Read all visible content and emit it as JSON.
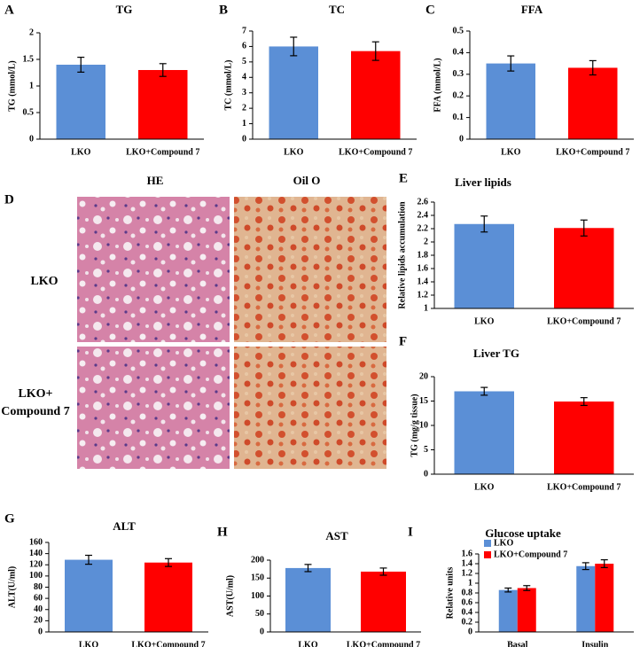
{
  "chart_data": [
    {
      "type": "bar",
      "panel": "A",
      "title": "TG",
      "ylabel": "TG (mmol/L)",
      "categories": [
        "LKO",
        "LKO+Compound 7"
      ],
      "values": [
        1.4,
        1.3
      ],
      "errors": [
        0.14,
        0.12
      ],
      "colors": [
        "#5b8fd6",
        "#ff0000"
      ],
      "ylim": [
        0,
        2
      ],
      "yticks": [
        0,
        0.5,
        1,
        1.5,
        2
      ]
    },
    {
      "type": "bar",
      "panel": "B",
      "title": "TC",
      "ylabel": "TC (mmol/L)",
      "categories": [
        "LKO",
        "LKO+Compound 7"
      ],
      "values": [
        6.0,
        5.7
      ],
      "errors": [
        0.6,
        0.6
      ],
      "colors": [
        "#5b8fd6",
        "#ff0000"
      ],
      "ylim": [
        0,
        7
      ],
      "yticks": [
        0,
        1,
        2,
        3,
        4,
        5,
        6,
        7
      ]
    },
    {
      "type": "bar",
      "panel": "C",
      "title": "FFA",
      "ylabel": "FFA (mmol/L)",
      "categories": [
        "LKO",
        "LKO+Compound 7"
      ],
      "values": [
        0.35,
        0.33
      ],
      "errors": [
        0.035,
        0.033
      ],
      "colors": [
        "#5b8fd6",
        "#ff0000"
      ],
      "ylim": [
        0,
        0.5
      ],
      "yticks": [
        0,
        0.1,
        0.2,
        0.3,
        0.4,
        0.5
      ]
    },
    {
      "type": "bar",
      "panel": "E",
      "title": "Liver lipids",
      "ylabel": "Relative lipids  accumulation",
      "categories": [
        "LKO",
        "LKO+Compound 7"
      ],
      "values": [
        2.27,
        2.21
      ],
      "errors": [
        0.12,
        0.12
      ],
      "colors": [
        "#5b8fd6",
        "#ff0000"
      ],
      "ylim": [
        1,
        2.6
      ],
      "yticks": [
        1,
        1.2,
        1.4,
        1.6,
        1.8,
        2,
        2.2,
        2.4,
        2.6
      ]
    },
    {
      "type": "bar",
      "panel": "F",
      "title": "Liver TG",
      "ylabel": "TG (mg/g tissue)",
      "categories": [
        "LKO",
        "LKO+Compound 7"
      ],
      "values": [
        17,
        14.9
      ],
      "errors": [
        0.8,
        0.8
      ],
      "colors": [
        "#5b8fd6",
        "#ff0000"
      ],
      "ylim": [
        0,
        20
      ],
      "yticks": [
        0,
        5,
        10,
        15,
        20
      ]
    },
    {
      "type": "bar",
      "panel": "G",
      "title": "ALT",
      "ylabel": "ALT(U/ml)",
      "categories": [
        "LKO",
        "LKO+Compound 7"
      ],
      "values": [
        129,
        124
      ],
      "errors": [
        8,
        7
      ],
      "colors": [
        "#5b8fd6",
        "#ff0000"
      ],
      "ylim": [
        0,
        160
      ],
      "yticks": [
        0,
        20,
        40,
        60,
        80,
        100,
        120,
        140,
        160
      ]
    },
    {
      "type": "bar",
      "panel": "H",
      "title": "AST",
      "ylabel": "AST(U/ml)",
      "categories": [
        "LKO",
        "LKO+Compound 7"
      ],
      "values": [
        178,
        168
      ],
      "errors": [
        10,
        10
      ],
      "colors": [
        "#5b8fd6",
        "#ff0000"
      ],
      "ylim": [
        0,
        200
      ],
      "yticks": [
        0,
        50,
        100,
        150,
        200
      ]
    },
    {
      "type": "grouped",
      "panel": "I",
      "title": "Glucose uptake",
      "ylabel": "Relative units",
      "categories": [
        "Basal",
        "Insulin"
      ],
      "legend": "top-left",
      "series": [
        {
          "name": "LKO",
          "color": "#5b8fd6",
          "values": [
            0.86,
            1.35
          ],
          "errors": [
            0.04,
            0.07
          ]
        },
        {
          "name": "LKO+Compound 7",
          "color": "#ff0000",
          "values": [
            0.9,
            1.4
          ],
          "errors": [
            0.05,
            0.08
          ]
        }
      ],
      "ylim": [
        0,
        1.6
      ],
      "yticks": [
        0,
        0.2,
        0.4,
        0.6,
        0.8,
        1,
        1.2,
        1.4,
        1.6
      ]
    }
  ],
  "histology": {
    "panel": "D",
    "columns": [
      "HE",
      "Oil O"
    ],
    "rows": [
      "LKO",
      "LKO+",
      "Compound 7"
    ]
  }
}
